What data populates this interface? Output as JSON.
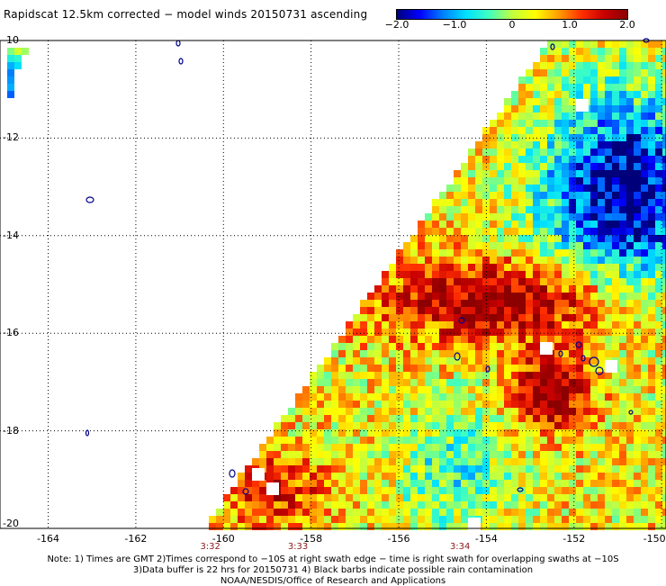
{
  "title": "Rapidscat 12.5km corrected − model winds 20150731 ascending",
  "colorbar": {
    "ticks": [
      {
        "label": "−2.0",
        "value": -2.0
      },
      {
        "label": "−1.0",
        "value": -1.0
      },
      {
        "label": "0",
        "value": 0
      },
      {
        "label": "1.0",
        "value": 1.0
      },
      {
        "label": "2.0",
        "value": 2.0
      }
    ],
    "range": [
      -2.0,
      2.0
    ],
    "colors": [
      "#00007a",
      "#0000ff",
      "#0080ff",
      "#00e0ff",
      "#40ffc0",
      "#c0ff40",
      "#ffff00",
      "#ffa000",
      "#ff3000",
      "#c80000",
      "#8c0000"
    ]
  },
  "map": {
    "lon_range": [
      -165,
      -150
    ],
    "lat_range": [
      -20,
      -10
    ],
    "lon_labels": [
      "-164",
      "-162",
      "-160",
      "-158",
      "-156",
      "-154",
      "-152",
      "-150"
    ],
    "lat_labels": [
      "-10",
      "-12",
      "-14",
      "-16",
      "-18",
      "-20"
    ],
    "time_labels": [
      {
        "label": "3:32",
        "lon": -160.3
      },
      {
        "label": "3:33",
        "lon": -158.3
      },
      {
        "label": "3:34",
        "lon": -154.6
      }
    ]
  },
  "notes": [
    "Note: 1) Times are GMT 2)Times correspond to −10S at right swath edge − time is right swath for overlapping swaths at −10S",
    "3)Data buffer is 22 hrs for 20150731 4) Black barbs indicate possible rain contamination",
    "NOAA/NESDIS/Office of Research and Applications"
  ]
}
